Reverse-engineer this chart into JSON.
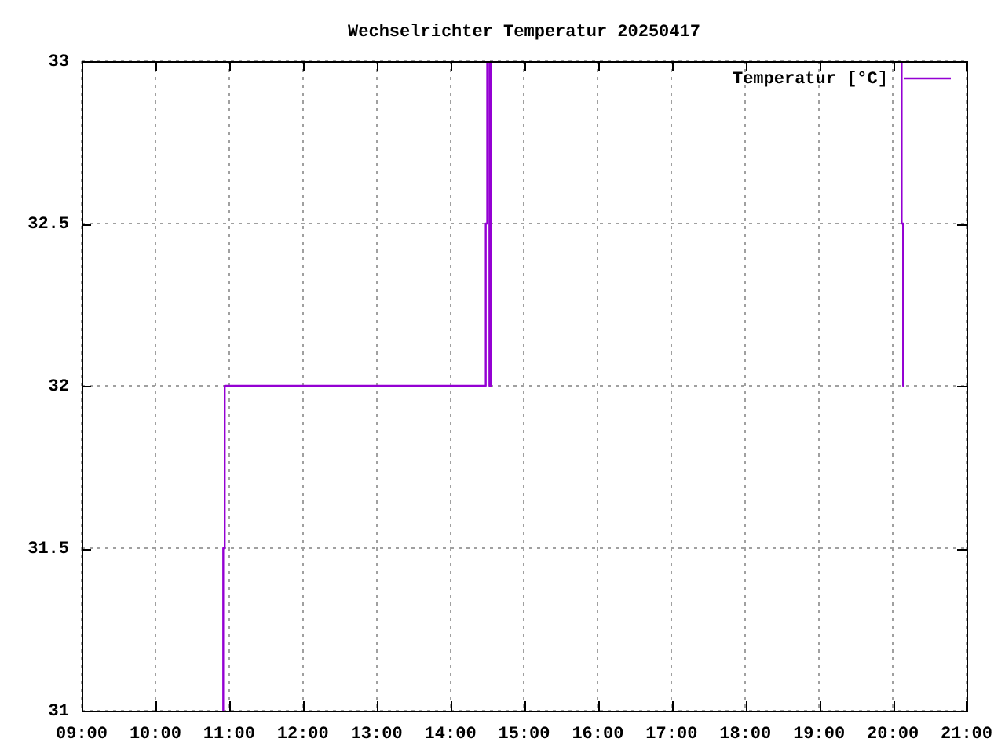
{
  "chart_data": {
    "type": "line",
    "title": "Wechselrichter Temperatur 20250417",
    "x": [
      10.92,
      10.92,
      10.94,
      10.94,
      14.48,
      14.48,
      14.5,
      14.5,
      14.53,
      14.53,
      14.55,
      14.55,
      14.56,
      20.12,
      20.12,
      20.14,
      20.14
    ],
    "series": [
      {
        "name": "Temperatur [°C]",
        "color": "#9400d3",
        "values": [
          31,
          31.5,
          31.5,
          32,
          32,
          32.5,
          32.5,
          33,
          33,
          32,
          32,
          33,
          null,
          33,
          32.5,
          32.5,
          32
        ]
      }
    ],
    "xlim": [
      9,
      21
    ],
    "xticks": [
      {
        "value": 9,
        "label": "09:00"
      },
      {
        "value": 10,
        "label": "10:00"
      },
      {
        "value": 11,
        "label": "11:00"
      },
      {
        "value": 12,
        "label": "12:00"
      },
      {
        "value": 13,
        "label": "13:00"
      },
      {
        "value": 14,
        "label": "14:00"
      },
      {
        "value": 15,
        "label": "15:00"
      },
      {
        "value": 16,
        "label": "16:00"
      },
      {
        "value": 17,
        "label": "17:00"
      },
      {
        "value": 18,
        "label": "18:00"
      },
      {
        "value": 19,
        "label": "19:00"
      },
      {
        "value": 20,
        "label": "20:00"
      },
      {
        "value": 21,
        "label": "21:00"
      }
    ],
    "ylim": [
      31,
      33
    ],
    "yticks": [
      31,
      31.5,
      32,
      32.5,
      33
    ],
    "grid": true,
    "legend": "top right",
    "marker": "none",
    "line_style": "solid"
  }
}
